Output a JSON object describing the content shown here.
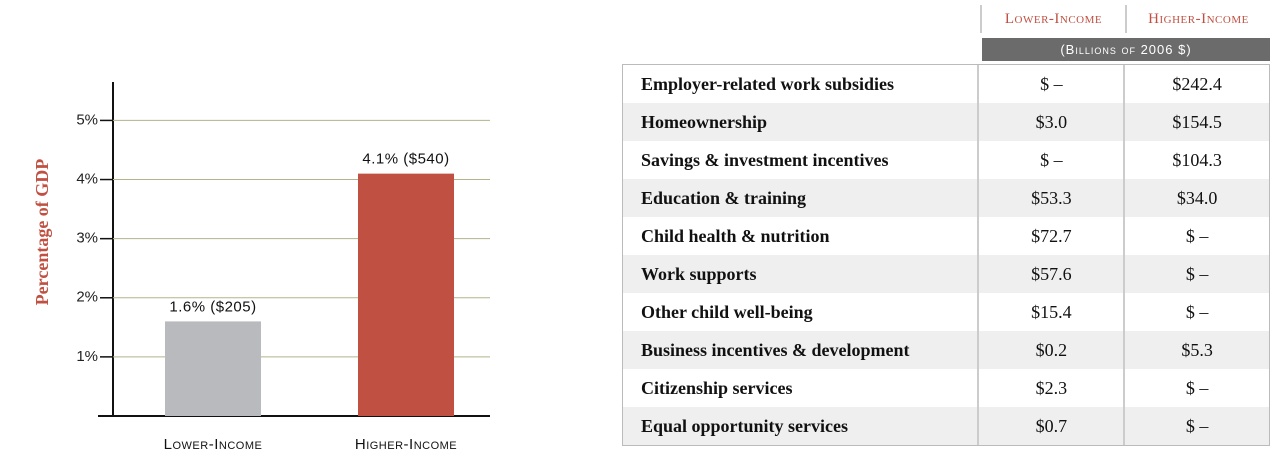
{
  "chart_data": {
    "type": "bar",
    "ylabel": "Percentage of GDP",
    "categories": [
      "Lower-Income",
      "Higher-Income"
    ],
    "values": [
      1.6,
      4.1
    ],
    "value_labels": [
      "1.6% ($205)",
      "4.1% ($540)"
    ],
    "colors": [
      "#b9babd",
      "#c05041"
    ],
    "grid_color": "#b3b38c",
    "ylim": [
      0,
      5.65
    ],
    "yticks": [
      {
        "value": 1,
        "label": "1%"
      },
      {
        "value": 2,
        "label": "2%"
      },
      {
        "value": 3,
        "label": "3%"
      },
      {
        "value": 4,
        "label": "4%"
      },
      {
        "value": 5,
        "label": "5%"
      }
    ],
    "grid": true
  },
  "table": {
    "columns": [
      "Lower-Income",
      "Higher-Income"
    ],
    "subheader": "(Billions of 2006 $)",
    "rows": [
      [
        "Employer-related work subsidies",
        "$ –",
        "$242.4"
      ],
      [
        "Homeownership",
        "$3.0",
        "$154.5"
      ],
      [
        "Savings & investment incentives",
        "$ –",
        "$104.3"
      ],
      [
        "Education & training",
        "$53.3",
        "$34.0"
      ],
      [
        "Child health & nutrition",
        "$72.7",
        "$ –"
      ],
      [
        "Work supports",
        "$57.6",
        "$ –"
      ],
      [
        "Other child well-being",
        "$15.4",
        "$ –"
      ],
      [
        "Business incentives & development",
        "$0.2",
        "$5.3"
      ],
      [
        "Citizenship services",
        "$2.3",
        "$ –"
      ],
      [
        "Equal opportunity services",
        "$0.7",
        "$ –"
      ]
    ]
  }
}
